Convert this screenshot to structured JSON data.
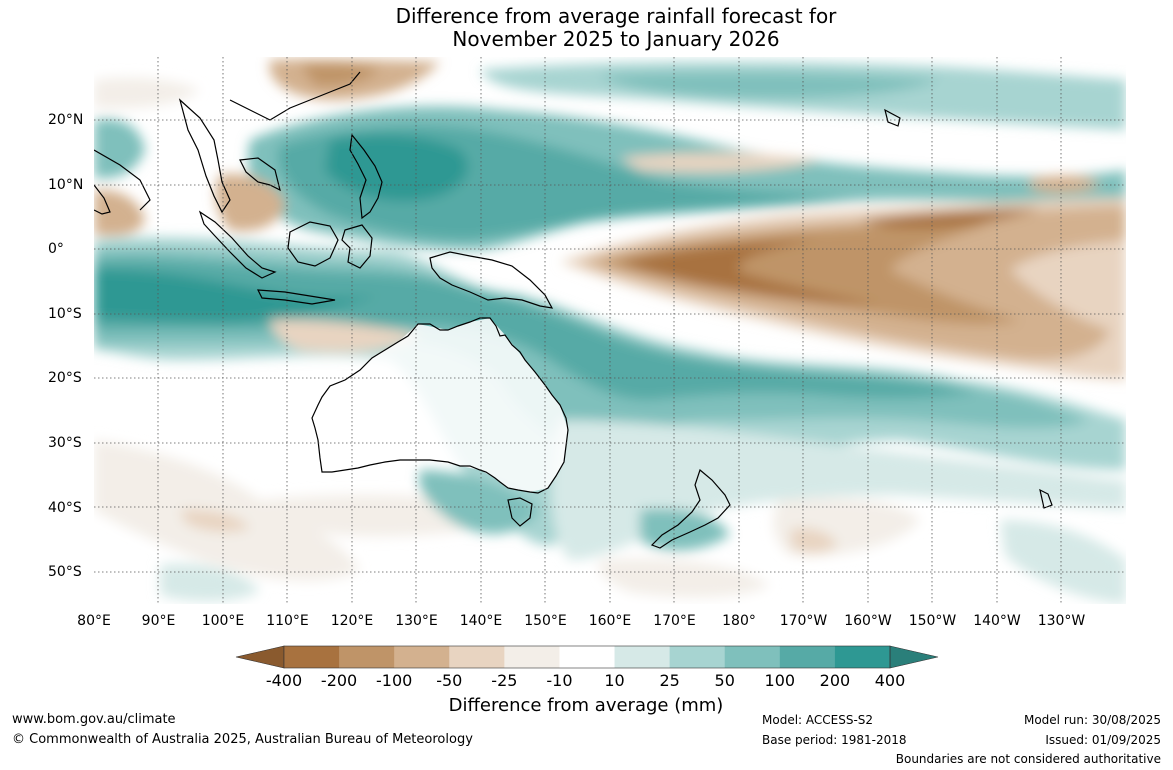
{
  "title_line1": "Difference from average rainfall forecast for",
  "title_line2": "November 2025 to January 2026",
  "lon_labels": [
    "80°E",
    "90°E",
    "100°E",
    "110°E",
    "120°E",
    "130°E",
    "140°E",
    "150°E",
    "160°E",
    "170°E",
    "180°",
    "170°W",
    "160°W",
    "150°W",
    "140°W",
    "130°W"
  ],
  "lat_labels": [
    "20°N",
    "10°N",
    "0°",
    "10°S",
    "20°S",
    "30°S",
    "40°S",
    "50°S"
  ],
  "colorbar": {
    "title": "Difference from average (mm)",
    "labels": [
      "-400",
      "-200",
      "-100",
      "-50",
      "-25",
      "-10",
      "10",
      "25",
      "50",
      "100",
      "200",
      "400"
    ],
    "colors": [
      "#a8723f",
      "#bf9468",
      "#d3b18f",
      "#e8d4c1",
      "#f3eee8",
      "#ffffff",
      "#d6e9e7",
      "#a7d4d1",
      "#7fc0bc",
      "#56aaa6",
      "#2e9893",
      "#2a7f7a",
      "#8a5a2e"
    ]
  },
  "footer": {
    "website": "www.bom.gov.au/climate",
    "copyright": "© Commonwealth of Australia 2025, Australian Bureau of Meteorology",
    "model": "Model: ACCESS-S2",
    "base_period": "Base period: 1981-2018",
    "model_run": "Model run: 30/08/2025",
    "issued": "Issued: 01/09/2025",
    "disclaimer": "Boundaries are not considered authoritative"
  }
}
